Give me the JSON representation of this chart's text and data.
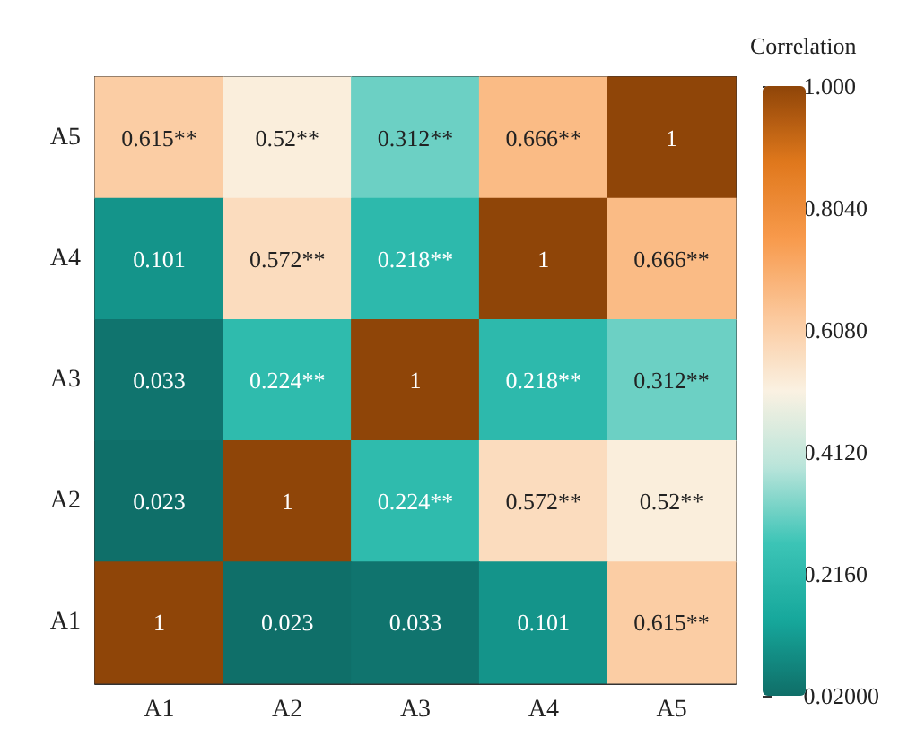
{
  "chart_data": {
    "type": "heatmap",
    "legend_title": "Correlation",
    "categories": [
      "A1",
      "A2",
      "A3",
      "A4",
      "A5"
    ],
    "y_categories": [
      "A5",
      "A4",
      "A3",
      "A2",
      "A1"
    ],
    "cells": [
      [
        0.615,
        0.52,
        0.312,
        0.666,
        1
      ],
      [
        0.101,
        0.572,
        0.218,
        1,
        0.666
      ],
      [
        0.033,
        0.224,
        1,
        0.218,
        0.312
      ],
      [
        0.023,
        1,
        0.224,
        0.572,
        0.52
      ],
      [
        1,
        0.023,
        0.033,
        0.101,
        0.615
      ]
    ],
    "cell_labels": [
      [
        "0.615**",
        "0.52**",
        "0.312**",
        "0.666**",
        "1"
      ],
      [
        "0.101",
        "0.572**",
        "0.218**",
        "1",
        "0.666**"
      ],
      [
        "0.033",
        "0.224**",
        "1",
        "0.218**",
        "0.312**"
      ],
      [
        "0.023",
        "1",
        "0.224**",
        "0.572**",
        "0.52**"
      ],
      [
        "1",
        "0.023",
        "0.033",
        "0.101",
        "0.615**"
      ]
    ],
    "clim": [
      0.02,
      1
    ],
    "cticks": [
      {
        "value": 1,
        "label": "1.000"
      },
      {
        "value": 0.804,
        "label": "0.8040"
      },
      {
        "value": 0.608,
        "label": "0.6080"
      },
      {
        "value": 0.412,
        "label": "0.4120"
      },
      {
        "value": 0.216,
        "label": "0.2160"
      },
      {
        "value": 0.02,
        "label": "0.02000"
      }
    ]
  }
}
